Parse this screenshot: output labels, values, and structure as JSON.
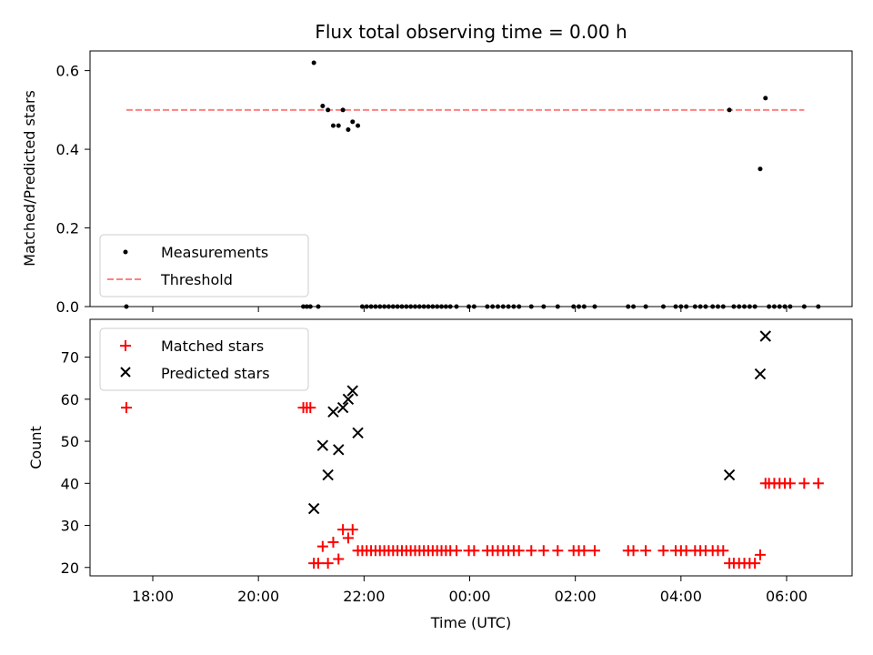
{
  "title": "Flux total observing time = 0.00 h",
  "chart_data": [
    {
      "type": "scatter",
      "ylabel": "Matched/Predicted stars",
      "ylim": [
        0,
        0.65
      ],
      "yticks": [
        0.0,
        0.2,
        0.4,
        0.6
      ],
      "ytick_labels": [
        "0.0",
        "0.2",
        "0.4",
        "0.6"
      ],
      "legend": {
        "position": "lower-left",
        "entries": [
          "Measurements",
          "Threshold"
        ]
      },
      "threshold": {
        "name": "Threshold",
        "value": 0.5,
        "x_range": [
          "17:30",
          "06:20"
        ],
        "color": "#ff8080"
      },
      "measurements": {
        "name": "Measurements",
        "color": "#000000",
        "points": [
          [
            "17:30",
            0.0
          ],
          [
            "20:51",
            0.0
          ],
          [
            "20:55",
            0.0
          ],
          [
            "20:59",
            0.0
          ],
          [
            "21:03",
            0.62
          ],
          [
            "21:08",
            0.0
          ],
          [
            "21:13",
            0.51
          ],
          [
            "21:19",
            0.5
          ],
          [
            "21:25",
            0.46
          ],
          [
            "21:31",
            0.46
          ],
          [
            "21:36",
            0.5
          ],
          [
            "21:42",
            0.45
          ],
          [
            "21:47",
            0.47
          ],
          [
            "21:53",
            0.46
          ],
          [
            "21:58",
            0.0
          ],
          [
            "22:03",
            0.0
          ],
          [
            "22:08",
            0.0
          ],
          [
            "22:13",
            0.0
          ],
          [
            "22:18",
            0.0
          ],
          [
            "22:23",
            0.0
          ],
          [
            "22:28",
            0.0
          ],
          [
            "22:33",
            0.0
          ],
          [
            "22:38",
            0.0
          ],
          [
            "22:43",
            0.0
          ],
          [
            "22:48",
            0.0
          ],
          [
            "22:53",
            0.0
          ],
          [
            "22:58",
            0.0
          ],
          [
            "23:03",
            0.0
          ],
          [
            "23:08",
            0.0
          ],
          [
            "23:13",
            0.0
          ],
          [
            "23:18",
            0.0
          ],
          [
            "23:23",
            0.0
          ],
          [
            "23:28",
            0.0
          ],
          [
            "23:33",
            0.0
          ],
          [
            "23:38",
            0.0
          ],
          [
            "23:45",
            0.0
          ],
          [
            "23:59",
            0.0
          ],
          [
            "00:05",
            0.0
          ],
          [
            "00:20",
            0.0
          ],
          [
            "00:26",
            0.0
          ],
          [
            "00:32",
            0.0
          ],
          [
            "00:38",
            0.0
          ],
          [
            "00:44",
            0.0
          ],
          [
            "00:50",
            0.0
          ],
          [
            "00:56",
            0.0
          ],
          [
            "01:10",
            0.0
          ],
          [
            "01:24",
            0.0
          ],
          [
            "01:40",
            0.0
          ],
          [
            "01:58",
            0.0
          ],
          [
            "02:04",
            0.0
          ],
          [
            "02:10",
            0.0
          ],
          [
            "02:22",
            0.0
          ],
          [
            "03:00",
            0.0
          ],
          [
            "03:06",
            0.0
          ],
          [
            "03:20",
            0.0
          ],
          [
            "03:40",
            0.0
          ],
          [
            "03:54",
            0.0
          ],
          [
            "04:00",
            0.0
          ],
          [
            "04:06",
            0.0
          ],
          [
            "04:16",
            0.0
          ],
          [
            "04:22",
            0.0
          ],
          [
            "04:28",
            0.0
          ],
          [
            "04:36",
            0.0
          ],
          [
            "04:42",
            0.0
          ],
          [
            "04:48",
            0.0
          ],
          [
            "04:55",
            0.5
          ],
          [
            "05:00",
            0.0
          ],
          [
            "05:06",
            0.0
          ],
          [
            "05:12",
            0.0
          ],
          [
            "05:18",
            0.0
          ],
          [
            "05:24",
            0.0
          ],
          [
            "05:30",
            0.35
          ],
          [
            "05:36",
            0.53
          ],
          [
            "05:40",
            0.0
          ],
          [
            "05:46",
            0.0
          ],
          [
            "05:52",
            0.0
          ],
          [
            "05:58",
            0.0
          ],
          [
            "06:04",
            0.0
          ],
          [
            "06:20",
            0.0
          ],
          [
            "06:36",
            0.0
          ]
        ]
      }
    },
    {
      "type": "scatter",
      "xlabel": "Time (UTC)",
      "ylabel": "Count",
      "ylim": [
        18,
        79
      ],
      "yticks": [
        20,
        30,
        40,
        50,
        60,
        70
      ],
      "ytick_labels": [
        "20",
        "30",
        "40",
        "50",
        "60",
        "70"
      ],
      "xticks": [
        "18:00",
        "20:00",
        "22:00",
        "00:00",
        "02:00",
        "04:00",
        "06:00"
      ],
      "legend": {
        "position": "upper-left",
        "entries": [
          "Matched stars",
          "Predicted stars"
        ]
      },
      "series": [
        {
          "name": "Matched stars",
          "marker": "plus",
          "color": "#ff0000",
          "points": [
            [
              "17:30",
              58
            ],
            [
              "20:51",
              58
            ],
            [
              "20:55",
              58
            ],
            [
              "20:59",
              58
            ],
            [
              "21:03",
              21
            ],
            [
              "21:08",
              21
            ],
            [
              "21:13",
              25
            ],
            [
              "21:19",
              21
            ],
            [
              "21:25",
              26
            ],
            [
              "21:31",
              22
            ],
            [
              "21:36",
              29
            ],
            [
              "21:42",
              27
            ],
            [
              "21:47",
              29
            ],
            [
              "21:53",
              24
            ],
            [
              "21:58",
              24
            ],
            [
              "22:03",
              24
            ],
            [
              "22:08",
              24
            ],
            [
              "22:13",
              24
            ],
            [
              "22:18",
              24
            ],
            [
              "22:23",
              24
            ],
            [
              "22:28",
              24
            ],
            [
              "22:33",
              24
            ],
            [
              "22:38",
              24
            ],
            [
              "22:43",
              24
            ],
            [
              "22:48",
              24
            ],
            [
              "22:53",
              24
            ],
            [
              "22:58",
              24
            ],
            [
              "23:03",
              24
            ],
            [
              "23:08",
              24
            ],
            [
              "23:13",
              24
            ],
            [
              "23:18",
              24
            ],
            [
              "23:23",
              24
            ],
            [
              "23:28",
              24
            ],
            [
              "23:33",
              24
            ],
            [
              "23:38",
              24
            ],
            [
              "23:45",
              24
            ],
            [
              "23:59",
              24
            ],
            [
              "00:05",
              24
            ],
            [
              "00:20",
              24
            ],
            [
              "00:26",
              24
            ],
            [
              "00:32",
              24
            ],
            [
              "00:38",
              24
            ],
            [
              "00:44",
              24
            ],
            [
              "00:50",
              24
            ],
            [
              "00:56",
              24
            ],
            [
              "01:10",
              24
            ],
            [
              "01:24",
              24
            ],
            [
              "01:40",
              24
            ],
            [
              "01:58",
              24
            ],
            [
              "02:04",
              24
            ],
            [
              "02:10",
              24
            ],
            [
              "02:22",
              24
            ],
            [
              "03:00",
              24
            ],
            [
              "03:06",
              24
            ],
            [
              "03:20",
              24
            ],
            [
              "03:40",
              24
            ],
            [
              "03:54",
              24
            ],
            [
              "04:00",
              24
            ],
            [
              "04:06",
              24
            ],
            [
              "04:16",
              24
            ],
            [
              "04:22",
              24
            ],
            [
              "04:28",
              24
            ],
            [
              "04:36",
              24
            ],
            [
              "04:42",
              24
            ],
            [
              "04:48",
              24
            ],
            [
              "04:55",
              21
            ],
            [
              "05:00",
              21
            ],
            [
              "05:06",
              21
            ],
            [
              "05:12",
              21
            ],
            [
              "05:18",
              21
            ],
            [
              "05:24",
              21
            ],
            [
              "05:30",
              23
            ],
            [
              "05:36",
              40
            ],
            [
              "05:40",
              40
            ],
            [
              "05:46",
              40
            ],
            [
              "05:52",
              40
            ],
            [
              "05:58",
              40
            ],
            [
              "06:04",
              40
            ],
            [
              "06:20",
              40
            ],
            [
              "06:36",
              40
            ]
          ]
        },
        {
          "name": "Predicted stars",
          "marker": "x",
          "color": "#000000",
          "points": [
            [
              "21:03",
              34
            ],
            [
              "21:13",
              49
            ],
            [
              "21:19",
              42
            ],
            [
              "21:25",
              57
            ],
            [
              "21:31",
              48
            ],
            [
              "21:36",
              58
            ],
            [
              "21:42",
              60
            ],
            [
              "21:47",
              62
            ],
            [
              "21:53",
              52
            ],
            [
              "04:55",
              42
            ],
            [
              "05:30",
              66
            ],
            [
              "05:36",
              75
            ]
          ]
        }
      ]
    }
  ]
}
